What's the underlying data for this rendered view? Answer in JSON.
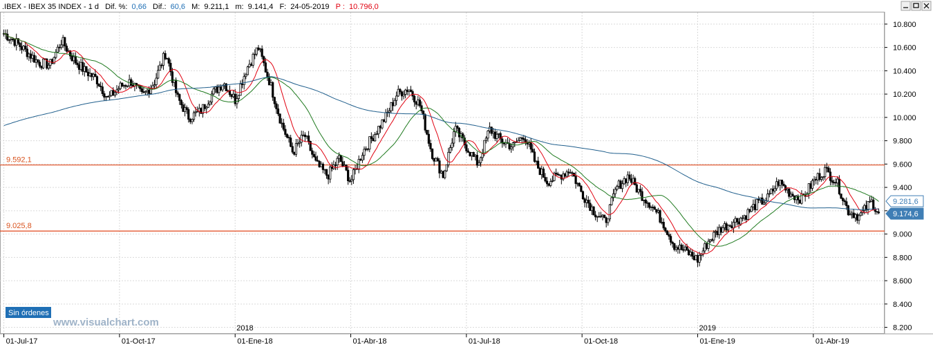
{
  "header": {
    "symbol": ".IBEX - IBEX 35 INDEX - 1 d",
    "dif_pct_label": "Dif. %:",
    "dif_pct": "0,66",
    "dif_label": "Dif.:",
    "dif": "60,6",
    "max_label": "M:",
    "max": "9.211,1",
    "min_label": "m:",
    "min": "9.141,4",
    "date_label": "F:",
    "date": "24-05-2019",
    "p_label": "P :",
    "p": "10.796,0"
  },
  "orders_badge": "Sin órdenes",
  "watermark": "www.visualchart.com",
  "window_buttons": [
    "minimize-icon",
    "restore-icon",
    "close-icon"
  ],
  "colors": {
    "candle": "#000000",
    "ma_short": "#e0000f",
    "ma_mid": "#1f7a1f",
    "ma_long": "#1f5e8c",
    "level_line": "#e0481c",
    "last_price_badge": "#3f7eb5",
    "orders_badge": "#1f6fb5",
    "grid": "#d9d9d9",
    "header_blue": "#1f6fb5",
    "header_red": "#e0000f"
  },
  "chart_data": {
    "type": "candlestick",
    "title": ".IBEX - IBEX 35 INDEX - 1 d",
    "ylim": [
      8150,
      10900
    ],
    "yticks": [
      "10.800",
      "10.600",
      "10.400",
      "10.200",
      "10.000",
      "9.800",
      "9.600",
      "9.400",
      "9.200",
      "9.000",
      "8.800",
      "8.600",
      "8.400",
      "8.200"
    ],
    "ytick_values": [
      10800,
      10600,
      10400,
      10200,
      10000,
      9800,
      9600,
      9400,
      9200,
      9000,
      8800,
      8600,
      8400,
      8200
    ],
    "xticks": [
      "01-Jul-17",
      "01-Oct-17",
      "01-Ene-18",
      "01-Abr-18",
      "01-Jul-18",
      "01-Oct-18",
      "01-Ene-19",
      "01-Abr-19"
    ],
    "xtick_months": [
      0,
      3,
      6,
      9,
      12,
      15,
      18,
      21
    ],
    "year_labels": [
      {
        "label": "2018",
        "month": 6
      },
      {
        "label": "2019",
        "month": 18
      }
    ],
    "x_range_months": [
      -0.1,
      22.85
    ],
    "horizontal_levels": [
      {
        "label": "9.592,1",
        "value": 9592.1
      },
      {
        "label": "9.025,8",
        "value": 9025.8
      }
    ],
    "last_values": [
      {
        "label": "9.281,6",
        "value": 9281.6
      },
      {
        "label": "9.174,6",
        "value": 9174.6
      }
    ],
    "grid": true,
    "close_path": [
      [
        0,
        10720
      ],
      [
        0.3,
        10650
      ],
      [
        0.6,
        10560
      ],
      [
        0.9,
        10470
      ],
      [
        1.2,
        10450
      ],
      [
        1.5,
        10660
      ],
      [
        1.8,
        10500
      ],
      [
        2.1,
        10400
      ],
      [
        2.4,
        10330
      ],
      [
        2.7,
        10160
      ],
      [
        3.0,
        10260
      ],
      [
        3.3,
        10310
      ],
      [
        3.6,
        10180
      ],
      [
        3.9,
        10300
      ],
      [
        4.2,
        10560
      ],
      [
        4.5,
        10170
      ],
      [
        4.8,
        10000
      ],
      [
        5.1,
        10050
      ],
      [
        5.4,
        10200
      ],
      [
        5.7,
        10300
      ],
      [
        6.0,
        10150
      ],
      [
        6.3,
        10420
      ],
      [
        6.6,
        10600
      ],
      [
        6.9,
        10300
      ],
      [
        7.2,
        9950
      ],
      [
        7.5,
        9700
      ],
      [
        7.8,
        9850
      ],
      [
        8.1,
        9600
      ],
      [
        8.4,
        9500
      ],
      [
        8.7,
        9650
      ],
      [
        9.0,
        9450
      ],
      [
        9.3,
        9700
      ],
      [
        9.6,
        9850
      ],
      [
        9.9,
        10000
      ],
      [
        10.2,
        10200
      ],
      [
        10.5,
        10250
      ],
      [
        10.8,
        10100
      ],
      [
        11.1,
        9700
      ],
      [
        11.4,
        9500
      ],
      [
        11.7,
        9900
      ],
      [
        12.0,
        9750
      ],
      [
        12.3,
        9600
      ],
      [
        12.6,
        9900
      ],
      [
        12.9,
        9800
      ],
      [
        13.2,
        9750
      ],
      [
        13.5,
        9850
      ],
      [
        13.8,
        9600
      ],
      [
        14.1,
        9450
      ],
      [
        14.4,
        9500
      ],
      [
        14.7,
        9550
      ],
      [
        15.0,
        9350
      ],
      [
        15.3,
        9200
      ],
      [
        15.6,
        9100
      ],
      [
        15.9,
        9400
      ],
      [
        16.2,
        9500
      ],
      [
        16.5,
        9350
      ],
      [
        16.8,
        9250
      ],
      [
        17.1,
        9100
      ],
      [
        17.4,
        8900
      ],
      [
        17.7,
        8850
      ],
      [
        18.0,
        8780
      ],
      [
        18.3,
        8950
      ],
      [
        18.6,
        9050
      ],
      [
        18.9,
        9100
      ],
      [
        19.2,
        9150
      ],
      [
        19.5,
        9250
      ],
      [
        19.8,
        9300
      ],
      [
        20.1,
        9450
      ],
      [
        20.4,
        9350
      ],
      [
        20.7,
        9300
      ],
      [
        21.0,
        9450
      ],
      [
        21.3,
        9550
      ],
      [
        21.6,
        9450
      ],
      [
        21.9,
        9200
      ],
      [
        22.2,
        9150
      ],
      [
        22.5,
        9280
      ],
      [
        22.7,
        9180
      ]
    ]
  }
}
